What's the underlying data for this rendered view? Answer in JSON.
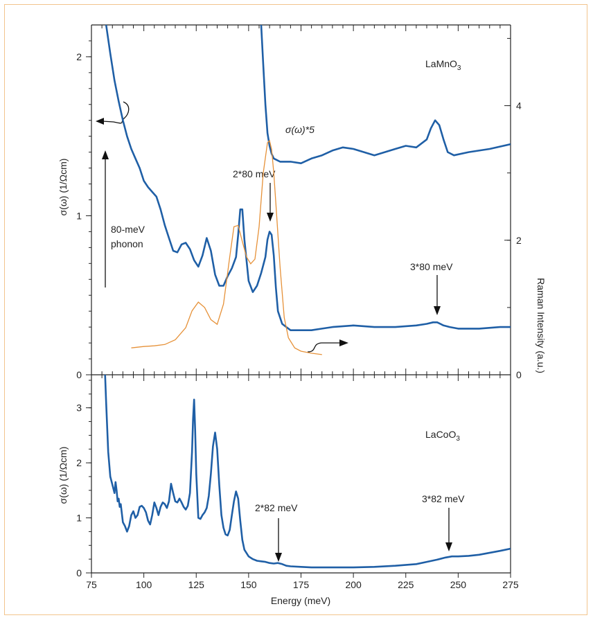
{
  "chart_data": [
    {
      "type": "line",
      "sample_label": "LaMnO",
      "sample_sub": "3",
      "ylabel_left": "σ(ω) (1/Ωcm)",
      "ylabel_right": "Raman Intensity (a.u.)",
      "xlim": [
        75,
        275
      ],
      "ylim_left": [
        0,
        2.2
      ],
      "ylim_right": [
        0,
        5.2
      ],
      "y_ticks_left": [
        0,
        1,
        2
      ],
      "y_ticks_right": [
        0,
        2,
        4
      ],
      "annotations": {
        "scaled_label": "σ(ω)*5",
        "phonon_line1": "80-meV",
        "phonon_line2": "phonon",
        "two_phonon": "2*80 meV",
        "three_phonon": "3*80 meV"
      },
      "series": [
        {
          "color": "#1f5fa6",
          "x": [
            82,
            84,
            86,
            88,
            90,
            92,
            94,
            96,
            98,
            100,
            102,
            104,
            106,
            108,
            110,
            112,
            114,
            116,
            118,
            120,
            122,
            124,
            126,
            128,
            130,
            132,
            134,
            136,
            138,
            140,
            142,
            144,
            145,
            146,
            147,
            148,
            150,
            152,
            154,
            156,
            158,
            159,
            160,
            161,
            162,
            163,
            164,
            166,
            168,
            170,
            175,
            180,
            185,
            190,
            200,
            210,
            220,
            230,
            235,
            238,
            240,
            243,
            246,
            250,
            260,
            270,
            275
          ],
          "y": [
            2.2,
            2.02,
            1.85,
            1.72,
            1.6,
            1.5,
            1.42,
            1.36,
            1.3,
            1.22,
            1.18,
            1.15,
            1.12,
            1.04,
            0.94,
            0.86,
            0.78,
            0.77,
            0.82,
            0.83,
            0.79,
            0.72,
            0.68,
            0.75,
            0.86,
            0.78,
            0.63,
            0.56,
            0.56,
            0.62,
            0.67,
            0.74,
            0.88,
            1.04,
            1.04,
            0.85,
            0.59,
            0.52,
            0.56,
            0.64,
            0.74,
            0.85,
            0.9,
            0.88,
            0.75,
            0.55,
            0.4,
            0.32,
            0.3,
            0.28,
            0.28,
            0.28,
            0.29,
            0.3,
            0.31,
            0.3,
            0.3,
            0.31,
            0.32,
            0.33,
            0.33,
            0.31,
            0.3,
            0.29,
            0.29,
            0.3,
            0.3
          ]
        },
        {
          "name": "σ(ω)*5",
          "color": "#1f5fa6",
          "x": [
            156,
            157,
            158,
            159,
            160,
            161,
            162,
            165,
            170,
            175,
            180,
            185,
            190,
            195,
            200,
            205,
            210,
            215,
            220,
            225,
            230,
            235,
            237,
            239,
            241,
            243,
            245,
            248,
            255,
            265,
            275
          ],
          "y": [
            2.2,
            1.95,
            1.7,
            1.52,
            1.44,
            1.39,
            1.36,
            1.34,
            1.34,
            1.33,
            1.36,
            1.38,
            1.41,
            1.43,
            1.42,
            1.4,
            1.38,
            1.4,
            1.42,
            1.44,
            1.43,
            1.48,
            1.55,
            1.6,
            1.57,
            1.48,
            1.4,
            1.38,
            1.4,
            1.42,
            1.45
          ]
        },
        {
          "axis": "right",
          "color": "#e69138",
          "x": [
            94,
            100,
            105,
            110,
            115,
            120,
            123,
            126,
            129,
            132,
            135,
            138,
            141,
            143,
            145,
            147,
            149,
            151,
            153,
            155,
            157,
            159,
            160,
            161,
            162,
            163,
            165,
            167,
            169,
            172,
            175,
            180,
            185
          ],
          "y": [
            0.4,
            0.42,
            0.43,
            0.45,
            0.52,
            0.7,
            0.95,
            1.08,
            1.0,
            0.82,
            0.75,
            1.05,
            1.75,
            2.2,
            2.22,
            1.98,
            1.75,
            1.65,
            1.72,
            2.2,
            3.0,
            3.45,
            3.48,
            3.35,
            3.0,
            2.55,
            1.6,
            0.85,
            0.55,
            0.4,
            0.35,
            0.32,
            0.3
          ]
        }
      ]
    },
    {
      "type": "line",
      "sample_label": "LaCoO",
      "sample_sub": "3",
      "xlabel": "Energy (meV)",
      "ylabel_left": "σ(ω) (1/Ωcm)",
      "xlim": [
        75,
        275
      ],
      "ylim_left": [
        0,
        3.6
      ],
      "x_ticks": [
        75,
        100,
        125,
        150,
        175,
        200,
        225,
        250,
        275
      ],
      "y_ticks_left": [
        0,
        1,
        2,
        3
      ],
      "annotations": {
        "two_phonon": "2*82 meV",
        "three_phonon": "3*82 meV"
      },
      "series": [
        {
          "color": "#1f5fa6",
          "x": [
            81.5,
            82,
            83,
            84,
            85,
            86,
            86.5,
            87,
            87.5,
            88,
            88.5,
            89,
            90,
            91,
            92,
            93,
            94,
            95,
            96,
            97,
            98,
            99,
            100,
            101,
            102,
            103,
            104,
            105,
            106,
            107,
            108,
            109,
            110,
            111,
            112,
            113,
            114,
            115,
            116,
            117,
            118,
            119,
            120,
            121,
            122,
            123,
            123.5,
            124,
            124.5,
            125,
            126,
            127,
            128,
            129,
            130,
            131,
            132,
            133,
            134,
            135,
            136,
            137,
            138,
            139,
            140,
            141,
            142,
            143,
            144,
            145,
            146,
            147,
            148,
            150,
            152,
            154,
            156,
            158,
            160,
            162,
            164,
            166,
            168,
            170,
            175,
            180,
            190,
            200,
            210,
            220,
            230,
            235,
            240,
            244,
            247,
            250,
            255,
            260,
            270,
            275
          ],
          "y": [
            3.6,
            3.1,
            2.2,
            1.75,
            1.6,
            1.45,
            1.65,
            1.5,
            1.3,
            1.35,
            1.2,
            1.25,
            0.92,
            0.85,
            0.75,
            0.85,
            1.05,
            1.12,
            1.0,
            1.05,
            1.2,
            1.22,
            1.18,
            1.1,
            0.95,
            0.88,
            1.05,
            1.28,
            1.18,
            1.05,
            1.2,
            1.28,
            1.25,
            1.18,
            1.3,
            1.62,
            1.45,
            1.3,
            1.28,
            1.35,
            1.28,
            1.2,
            1.15,
            1.22,
            1.45,
            2.2,
            2.8,
            3.15,
            2.6,
            1.8,
            1.0,
            0.98,
            1.05,
            1.1,
            1.18,
            1.4,
            1.8,
            2.3,
            2.55,
            2.25,
            1.6,
            1.05,
            0.82,
            0.7,
            0.68,
            0.78,
            1.05,
            1.3,
            1.48,
            1.35,
            0.95,
            0.6,
            0.42,
            0.3,
            0.25,
            0.22,
            0.21,
            0.2,
            0.18,
            0.17,
            0.18,
            0.16,
            0.13,
            0.12,
            0.11,
            0.1,
            0.1,
            0.1,
            0.11,
            0.13,
            0.16,
            0.2,
            0.24,
            0.28,
            0.3,
            0.3,
            0.31,
            0.33,
            0.4,
            0.44
          ]
        }
      ]
    }
  ]
}
